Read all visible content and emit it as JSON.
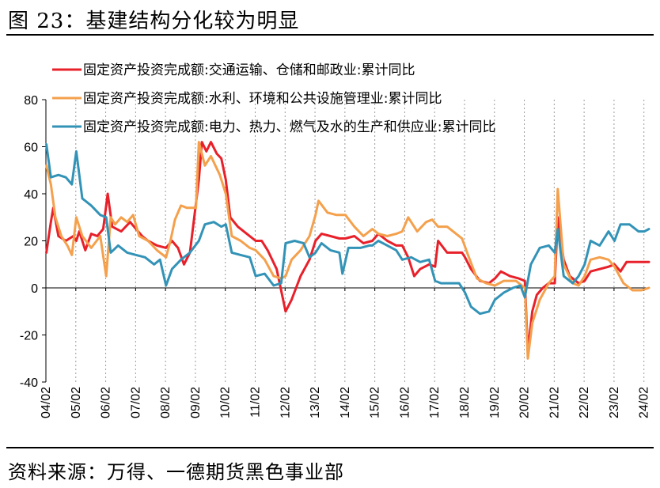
{
  "header": {
    "title": "图 23：基建结构分化较为明显"
  },
  "footer": {
    "source": "资料来源：万得、一德期货黑色事业部"
  },
  "chart_data": {
    "type": "line",
    "title": "",
    "xlabel": "",
    "ylabel": "",
    "ylim": [
      -40,
      80
    ],
    "yticks": [
      -40,
      -20,
      0,
      20,
      40,
      60,
      80
    ],
    "xlim": [
      2004.083,
      2024.25
    ],
    "xticks": [
      "04/02",
      "05/02",
      "06/02",
      "07/02",
      "08/02",
      "09/02",
      "10/02",
      "11/02",
      "12/02",
      "13/02",
      "14/02",
      "15/02",
      "16/02",
      "17/02",
      "18/02",
      "19/02",
      "20/02",
      "21/02",
      "22/02",
      "23/02",
      "24/02"
    ],
    "grid": "vertical-dotted",
    "legend": "top-left",
    "series": [
      {
        "name": "固定资产投资完成额:交通运输、仓储和邮政业:累计同比",
        "color": "#e8202a",
        "points": [
          [
            2004.1,
            15
          ],
          [
            2004.25,
            28
          ],
          [
            2004.33,
            34
          ],
          [
            2004.5,
            22
          ],
          [
            2004.75,
            20
          ],
          [
            2005.0,
            22
          ],
          [
            2005.1,
            20
          ],
          [
            2005.2,
            24
          ],
          [
            2005.4,
            16
          ],
          [
            2005.6,
            23
          ],
          [
            2005.8,
            22
          ],
          [
            2006.0,
            25
          ],
          [
            2006.15,
            40
          ],
          [
            2006.3,
            26
          ],
          [
            2006.6,
            24
          ],
          [
            2006.9,
            28
          ],
          [
            2007.1,
            25
          ],
          [
            2007.3,
            22
          ],
          [
            2007.5,
            20
          ],
          [
            2007.8,
            18
          ],
          [
            2008.1,
            17
          ],
          [
            2008.3,
            20
          ],
          [
            2008.5,
            17
          ],
          [
            2008.7,
            10
          ],
          [
            2008.9,
            15
          ],
          [
            2009.2,
            46
          ],
          [
            2009.3,
            62
          ],
          [
            2009.45,
            58
          ],
          [
            2009.6,
            62
          ],
          [
            2009.8,
            57
          ],
          [
            2009.95,
            55
          ],
          [
            2010.1,
            46
          ],
          [
            2010.25,
            30
          ],
          [
            2010.5,
            26
          ],
          [
            2010.8,
            23
          ],
          [
            2011.1,
            20
          ],
          [
            2011.3,
            20
          ],
          [
            2011.5,
            16
          ],
          [
            2011.8,
            8
          ],
          [
            2012.1,
            -10
          ],
          [
            2012.3,
            -5
          ],
          [
            2012.6,
            5
          ],
          [
            2012.9,
            12
          ],
          [
            2013.1,
            20
          ],
          [
            2013.3,
            23
          ],
          [
            2013.6,
            22
          ],
          [
            2013.9,
            21
          ],
          [
            2014.1,
            21
          ],
          [
            2014.4,
            22
          ],
          [
            2014.7,
            19
          ],
          [
            2015.0,
            20
          ],
          [
            2015.2,
            23
          ],
          [
            2015.5,
            20
          ],
          [
            2015.8,
            18
          ],
          [
            2016.0,
            18
          ],
          [
            2016.2,
            13
          ],
          [
            2016.4,
            5
          ],
          [
            2016.6,
            8
          ],
          [
            2016.9,
            10
          ],
          [
            2017.1,
            9
          ],
          [
            2017.2,
            20
          ],
          [
            2017.5,
            15
          ],
          [
            2017.8,
            15
          ],
          [
            2018.0,
            15
          ],
          [
            2018.1,
            13
          ],
          [
            2018.3,
            8
          ],
          [
            2018.6,
            3
          ],
          [
            2018.9,
            2
          ],
          [
            2019.1,
            4
          ],
          [
            2019.3,
            7
          ],
          [
            2019.6,
            5
          ],
          [
            2019.9,
            4
          ],
          [
            2020.1,
            3
          ],
          [
            2020.2,
            -27
          ],
          [
            2020.35,
            -10
          ],
          [
            2020.5,
            -3
          ],
          [
            2020.7,
            0
          ],
          [
            2020.9,
            2
          ],
          [
            2021.1,
            2
          ],
          [
            2021.2,
            30
          ],
          [
            2021.4,
            12
          ],
          [
            2021.6,
            5
          ],
          [
            2021.9,
            2
          ],
          [
            2022.1,
            3
          ],
          [
            2022.3,
            7
          ],
          [
            2022.6,
            8
          ],
          [
            2022.9,
            9
          ],
          [
            2023.1,
            10
          ],
          [
            2023.3,
            7
          ],
          [
            2023.5,
            11
          ],
          [
            2023.8,
            11
          ],
          [
            2024.25,
            11
          ]
        ]
      },
      {
        "name": "固定资产投资完成额:水利、环境和公共设施管理业:累计同比",
        "color": "#f4a04c",
        "points": [
          [
            2004.1,
            52
          ],
          [
            2004.25,
            44
          ],
          [
            2004.4,
            30
          ],
          [
            2004.6,
            22
          ],
          [
            2004.8,
            18
          ],
          [
            2004.95,
            14
          ],
          [
            2005.1,
            30
          ],
          [
            2005.3,
            22
          ],
          [
            2005.6,
            17
          ],
          [
            2005.9,
            22
          ],
          [
            2006.1,
            5
          ],
          [
            2006.25,
            30
          ],
          [
            2006.4,
            27
          ],
          [
            2006.6,
            30
          ],
          [
            2006.8,
            28
          ],
          [
            2007.0,
            31
          ],
          [
            2007.2,
            22
          ],
          [
            2007.5,
            20
          ],
          [
            2007.8,
            16
          ],
          [
            2008.1,
            13
          ],
          [
            2008.25,
            20
          ],
          [
            2008.4,
            29
          ],
          [
            2008.6,
            35
          ],
          [
            2008.8,
            34
          ],
          [
            2009.1,
            34
          ],
          [
            2009.2,
            62
          ],
          [
            2009.4,
            52
          ],
          [
            2009.6,
            56
          ],
          [
            2009.9,
            48
          ],
          [
            2010.1,
            40
          ],
          [
            2010.3,
            22
          ],
          [
            2010.6,
            20
          ],
          [
            2010.9,
            17
          ],
          [
            2011.1,
            16
          ],
          [
            2011.4,
            12
          ],
          [
            2011.7,
            5
          ],
          [
            2011.95,
            4
          ],
          [
            2012.1,
            5
          ],
          [
            2012.3,
            12
          ],
          [
            2012.6,
            16
          ],
          [
            2012.9,
            22
          ],
          [
            2013.1,
            31
          ],
          [
            2013.2,
            37
          ],
          [
            2013.5,
            32
          ],
          [
            2013.8,
            31
          ],
          [
            2014.1,
            31
          ],
          [
            2014.4,
            26
          ],
          [
            2014.7,
            22
          ],
          [
            2015.0,
            25
          ],
          [
            2015.2,
            23
          ],
          [
            2015.5,
            22
          ],
          [
            2015.8,
            23
          ],
          [
            2016.0,
            24
          ],
          [
            2016.2,
            30
          ],
          [
            2016.5,
            24
          ],
          [
            2016.8,
            28
          ],
          [
            2017.0,
            29
          ],
          [
            2017.2,
            26
          ],
          [
            2017.5,
            26
          ],
          [
            2017.8,
            23
          ],
          [
            2018.0,
            21
          ],
          [
            2018.2,
            14
          ],
          [
            2018.5,
            4
          ],
          [
            2018.8,
            2
          ],
          [
            2019.1,
            1
          ],
          [
            2019.4,
            3
          ],
          [
            2019.8,
            3
          ],
          [
            2020.1,
            0
          ],
          [
            2020.2,
            -30
          ],
          [
            2020.35,
            -15
          ],
          [
            2020.6,
            -5
          ],
          [
            2020.9,
            2
          ],
          [
            2021.1,
            5
          ],
          [
            2021.2,
            42
          ],
          [
            2021.4,
            10
          ],
          [
            2021.7,
            2
          ],
          [
            2021.9,
            1
          ],
          [
            2022.1,
            5
          ],
          [
            2022.3,
            12
          ],
          [
            2022.6,
            13
          ],
          [
            2022.9,
            12
          ],
          [
            2023.1,
            9
          ],
          [
            2023.4,
            2
          ],
          [
            2023.7,
            -1
          ],
          [
            2024.0,
            -1
          ],
          [
            2024.25,
            0
          ]
        ]
      },
      {
        "name": "固定资产投资完成额:电力、热力、燃气及水的生产和供应业:累计同比",
        "color": "#3393b7",
        "points": [
          [
            2004.1,
            61
          ],
          [
            2004.25,
            47
          ],
          [
            2004.5,
            48
          ],
          [
            2004.75,
            47
          ],
          [
            2004.95,
            44
          ],
          [
            2005.1,
            58
          ],
          [
            2005.3,
            38
          ],
          [
            2005.6,
            35
          ],
          [
            2005.9,
            31
          ],
          [
            2006.1,
            30
          ],
          [
            2006.25,
            15
          ],
          [
            2006.5,
            18
          ],
          [
            2006.8,
            15
          ],
          [
            2007.1,
            14
          ],
          [
            2007.4,
            13
          ],
          [
            2007.7,
            10
          ],
          [
            2007.9,
            12
          ],
          [
            2008.1,
            1
          ],
          [
            2008.3,
            8
          ],
          [
            2008.6,
            12
          ],
          [
            2008.9,
            15
          ],
          [
            2009.2,
            20
          ],
          [
            2009.4,
            27
          ],
          [
            2009.7,
            28
          ],
          [
            2009.95,
            26
          ],
          [
            2010.1,
            27
          ],
          [
            2010.3,
            15
          ],
          [
            2010.6,
            14
          ],
          [
            2010.9,
            13
          ],
          [
            2011.1,
            5
          ],
          [
            2011.4,
            6
          ],
          [
            2011.7,
            1
          ],
          [
            2011.95,
            2
          ],
          [
            2012.1,
            19
          ],
          [
            2012.4,
            20
          ],
          [
            2012.7,
            19
          ],
          [
            2012.9,
            13
          ],
          [
            2013.1,
            15
          ],
          [
            2013.3,
            19
          ],
          [
            2013.6,
            16
          ],
          [
            2013.9,
            15
          ],
          [
            2014.0,
            6
          ],
          [
            2014.2,
            17
          ],
          [
            2014.6,
            17
          ],
          [
            2014.9,
            18
          ],
          [
            2015.0,
            18
          ],
          [
            2015.2,
            20
          ],
          [
            2015.5,
            18
          ],
          [
            2015.8,
            16
          ],
          [
            2016.0,
            12
          ],
          [
            2016.3,
            13
          ],
          [
            2016.6,
            11
          ],
          [
            2016.9,
            12
          ],
          [
            2017.1,
            3
          ],
          [
            2017.3,
            2
          ],
          [
            2017.6,
            2
          ],
          [
            2017.9,
            2
          ],
          [
            2018.1,
            -2
          ],
          [
            2018.3,
            -8
          ],
          [
            2018.6,
            -11
          ],
          [
            2018.9,
            -10
          ],
          [
            2019.1,
            -5
          ],
          [
            2019.4,
            -2
          ],
          [
            2019.7,
            0
          ],
          [
            2019.95,
            1
          ],
          [
            2020.1,
            -4
          ],
          [
            2020.3,
            10
          ],
          [
            2020.6,
            17
          ],
          [
            2020.9,
            18
          ],
          [
            2021.1,
            15
          ],
          [
            2021.2,
            25
          ],
          [
            2021.4,
            5
          ],
          [
            2021.7,
            2
          ],
          [
            2021.9,
            5
          ],
          [
            2022.1,
            10
          ],
          [
            2022.3,
            20
          ],
          [
            2022.6,
            18
          ],
          [
            2022.9,
            24
          ],
          [
            2023.1,
            20
          ],
          [
            2023.3,
            27
          ],
          [
            2023.6,
            27
          ],
          [
            2023.9,
            24
          ],
          [
            2024.1,
            24
          ],
          [
            2024.25,
            25
          ]
        ]
      }
    ]
  }
}
